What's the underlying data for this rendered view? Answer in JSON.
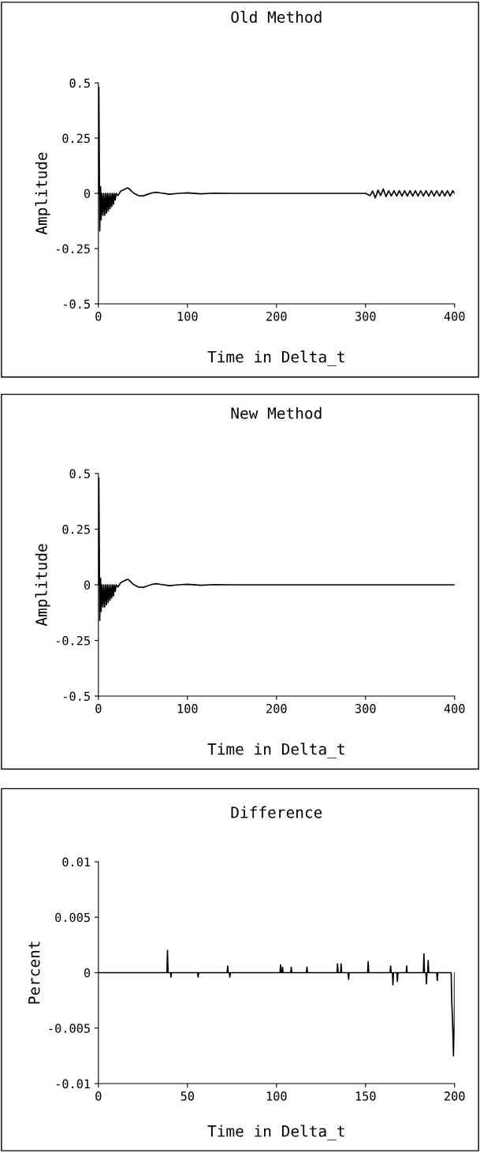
{
  "chart_data": [
    {
      "type": "line",
      "title": "Old Method",
      "xlabel": "Time in Delta_t",
      "ylabel": "Amplitude",
      "xlim": [
        0,
        400
      ],
      "xticks": [
        0,
        100,
        200,
        300,
        400
      ],
      "ylim": [
        -0.5,
        0.5
      ],
      "yticks": [
        -0.5,
        -0.25,
        0,
        0.25,
        0.5
      ],
      "grid": false,
      "series": [
        {
          "color": "#000000",
          "x": [
            0,
            0.5,
            1.5,
            2.5,
            3,
            4,
            5,
            6,
            7,
            8,
            9,
            10,
            11,
            12,
            13,
            14,
            15,
            16,
            17,
            18,
            19,
            20,
            22,
            25,
            30,
            33,
            36,
            40,
            45,
            50,
            55,
            60,
            65,
            70,
            80,
            90,
            100,
            115,
            130,
            150,
            200,
            250,
            300,
            305,
            308,
            311,
            314,
            317,
            320,
            323,
            326,
            329,
            332,
            335,
            338,
            341,
            344,
            347,
            350,
            353,
            356,
            359,
            362,
            365,
            368,
            371,
            374,
            377,
            380,
            383,
            386,
            389,
            392,
            395,
            398,
            400
          ],
          "values": [
            0,
            0.48,
            -0.17,
            0.03,
            -0.12,
            0,
            -0.1,
            0,
            -0.1,
            0,
            -0.09,
            0,
            -0.08,
            0,
            -0.07,
            0,
            -0.06,
            0,
            -0.05,
            0,
            -0.03,
            0,
            -0.01,
            0.01,
            0.02,
            0.025,
            0.015,
            0,
            -0.01,
            -0.012,
            -0.005,
            0.002,
            0.005,
            0.002,
            -0.004,
            0,
            0.002,
            -0.002,
            0.001,
            0,
            0,
            0,
            0,
            -0.01,
            0.01,
            -0.02,
            0.015,
            -0.01,
            0.02,
            -0.015,
            0.012,
            -0.012,
            0.012,
            -0.012,
            0.012,
            -0.012,
            0.012,
            -0.012,
            0.012,
            -0.012,
            0.012,
            -0.012,
            0.012,
            -0.012,
            0.012,
            -0.012,
            0.012,
            -0.012,
            0.012,
            -0.012,
            0.012,
            -0.012,
            0.012,
            -0.012,
            0.012,
            0
          ]
        }
      ]
    },
    {
      "type": "line",
      "title": "New Method",
      "xlabel": "Time in Delta_t",
      "ylabel": "Amplitude",
      "xlim": [
        0,
        400
      ],
      "xticks": [
        0,
        100,
        200,
        300,
        400
      ],
      "ylim": [
        -0.5,
        0.5
      ],
      "yticks": [
        -0.5,
        -0.25,
        0,
        0.25,
        0.5
      ],
      "grid": false,
      "series": [
        {
          "color": "#000000",
          "x": [
            0,
            0.5,
            1.5,
            2.5,
            3,
            4,
            5,
            6,
            7,
            8,
            9,
            10,
            11,
            12,
            13,
            14,
            15,
            16,
            17,
            18,
            19,
            20,
            22,
            25,
            30,
            33,
            36,
            40,
            45,
            50,
            55,
            60,
            65,
            70,
            80,
            90,
            100,
            115,
            130,
            150,
            200,
            300,
            400
          ],
          "values": [
            0,
            0.48,
            -0.16,
            0.03,
            -0.12,
            0,
            -0.1,
            0,
            -0.1,
            0,
            -0.09,
            0,
            -0.08,
            0,
            -0.07,
            0,
            -0.06,
            0,
            -0.05,
            0,
            -0.03,
            0,
            -0.01,
            0.01,
            0.02,
            0.025,
            0.015,
            0,
            -0.01,
            -0.012,
            -0.005,
            0.002,
            0.005,
            0.002,
            -0.004,
            0,
            0.002,
            -0.002,
            0.001,
            0,
            0,
            0,
            0
          ]
        }
      ]
    },
    {
      "type": "line",
      "title": "Difference",
      "xlabel": "Time in Delta_t",
      "ylabel": "Percent",
      "xlim": [
        0,
        200
      ],
      "xticks": [
        0,
        50,
        100,
        150,
        200
      ],
      "ylim": [
        -0.01,
        0.01
      ],
      "yticks": [
        -0.01,
        -0.005,
        0,
        0.005,
        0.01
      ],
      "grid": false,
      "series": [
        {
          "color": "#000000",
          "x": [
            0,
            38.5,
            38.8,
            39.1,
            40.5,
            40.8,
            41.1,
            55.7,
            56,
            56.3,
            72.3,
            72.6,
            72.9,
            73.5,
            73.8,
            74.1,
            102,
            102.3,
            102.6,
            103.1,
            103.4,
            103.7,
            108,
            108.3,
            108.6,
            116.8,
            117.1,
            117.4,
            134,
            134.3,
            134.6,
            136,
            136.3,
            136.6,
            140.2,
            140.5,
            140.8,
            151.2,
            151.5,
            151.8,
            163.8,
            164.1,
            164.4,
            165.1,
            165.4,
            165.7,
            167.6,
            167.9,
            168.2,
            172.8,
            173.1,
            173.4,
            182.5,
            182.8,
            183.1,
            183.9,
            184.2,
            184.5,
            184.9,
            185.2,
            185.5,
            190,
            190.3,
            190.6,
            198.1,
            198.4,
            198.9,
            199.4,
            199.9,
            200
          ],
          "values": [
            0,
            0,
            0.002,
            0,
            0,
            -0.0004,
            0,
            0,
            -0.0004,
            0,
            0,
            0.0006,
            0,
            0,
            -0.0004,
            0,
            0,
            0.0007,
            0,
            0,
            0.0005,
            0,
            0,
            0.0005,
            0,
            0,
            0.0005,
            0,
            0,
            0.0008,
            0,
            0,
            0.0008,
            0,
            0,
            -0.0006,
            0,
            0,
            0.001,
            0,
            0,
            0.0006,
            0,
            0,
            -0.0011,
            0,
            0,
            -0.0008,
            0,
            0,
            0.0006,
            0,
            0,
            0.0017,
            0,
            0,
            -0.001,
            0,
            0,
            0.0011,
            0,
            0,
            -0.0007,
            0,
            0,
            -0.0025,
            -0.0045,
            -0.0075,
            -0.0045,
            0
          ]
        }
      ]
    }
  ]
}
